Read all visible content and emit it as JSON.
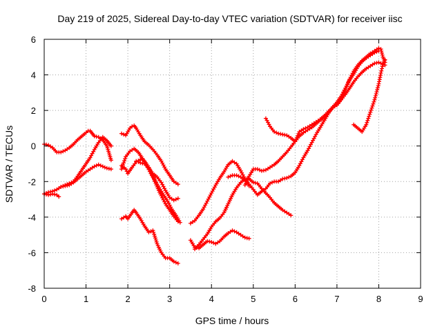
{
  "chart_data": {
    "type": "scatter",
    "title": "Day 219 of 2025, Sidereal Day-to-day VTEC variation (SDTVAR) for receiver iisc",
    "xlabel": "GPS time / hours",
    "ylabel": "SDTVAR / TECUs",
    "xlim": [
      0,
      9
    ],
    "ylim": [
      -8,
      6
    ],
    "xticks": [
      "0",
      "1",
      "2",
      "3",
      "4",
      "5",
      "6",
      "7",
      "8",
      "9"
    ],
    "yticks": [
      "-8",
      "-6",
      "-4",
      "-2",
      "0",
      "2",
      "4",
      "6"
    ],
    "grid": true,
    "marker": "plus",
    "color": "#ff0000",
    "series": [
      {
        "name": "s1",
        "x": [
          0.0,
          0.1,
          0.2,
          0.3,
          0.4,
          0.5,
          0.6,
          0.7,
          0.8,
          0.9,
          1.0,
          1.05,
          1.1,
          1.15,
          1.2,
          1.3,
          1.4,
          1.5,
          1.55,
          1.6
        ],
        "y": [
          0.1,
          0.05,
          -0.1,
          -0.35,
          -0.35,
          -0.25,
          -0.1,
          0.1,
          0.35,
          0.55,
          0.75,
          0.85,
          0.85,
          0.7,
          0.55,
          0.5,
          0.35,
          0.0,
          -0.4,
          -0.8
        ]
      },
      {
        "name": "s2",
        "x": [
          0.0,
          0.1,
          0.2,
          0.3,
          0.4,
          0.5,
          0.6,
          0.7,
          0.8,
          0.9,
          1.0,
          1.1,
          1.2,
          1.3,
          1.4,
          1.5,
          1.6
        ],
        "y": [
          -2.7,
          -2.6,
          -2.55,
          -2.45,
          -2.3,
          -2.25,
          -2.2,
          -2.05,
          -1.85,
          -1.65,
          -1.45,
          -1.3,
          -1.15,
          -1.05,
          -1.15,
          -1.25,
          -1.3
        ]
      },
      {
        "name": "s3",
        "x": [
          0.0,
          0.1,
          0.2,
          0.3,
          0.35
        ],
        "y": [
          -2.7,
          -2.75,
          -2.7,
          -2.75,
          -2.85
        ]
      },
      {
        "name": "s4",
        "x": [
          0.4,
          0.5,
          0.6,
          0.7,
          0.8,
          0.9,
          1.0,
          1.1,
          1.2,
          1.3,
          1.4,
          1.5,
          1.55,
          1.6
        ],
        "y": [
          -2.3,
          -2.2,
          -2.1,
          -2.0,
          -1.7,
          -1.35,
          -1.0,
          -0.65,
          -0.2,
          0.2,
          0.5,
          0.3,
          0.15,
          0.0
        ]
      },
      {
        "name": "s5",
        "x": [
          1.85,
          1.95,
          2.05,
          2.1,
          2.15,
          2.2,
          2.3,
          2.4,
          2.5,
          2.6,
          2.7,
          2.8,
          2.9,
          3.0,
          3.1,
          3.2
        ],
        "y": [
          0.7,
          0.6,
          1.0,
          1.1,
          1.15,
          1.0,
          0.6,
          0.25,
          0.05,
          -0.2,
          -0.5,
          -0.85,
          -1.3,
          -1.65,
          -2.0,
          -2.15
        ]
      },
      {
        "name": "s6",
        "x": [
          1.85,
          1.95,
          2.05,
          2.15,
          2.25,
          2.35,
          2.45,
          2.55,
          2.65,
          2.75,
          2.85,
          2.95,
          3.05,
          3.15,
          3.25
        ],
        "y": [
          -1.3,
          -0.6,
          -0.3,
          -0.15,
          -0.35,
          -0.7,
          -1.1,
          -1.55,
          -1.95,
          -2.35,
          -2.75,
          -3.1,
          -3.55,
          -3.9,
          -4.3
        ]
      },
      {
        "name": "s7",
        "x": [
          1.85,
          1.95,
          2.0,
          2.1,
          2.2,
          2.3,
          2.4,
          2.5,
          2.6,
          2.7,
          2.8,
          2.9,
          3.0,
          3.1,
          3.2
        ],
        "y": [
          -1.1,
          -1.3,
          -1.55,
          -1.2,
          -0.9,
          -0.75,
          -0.85,
          -1.2,
          -1.7,
          -2.3,
          -2.8,
          -3.25,
          -3.6,
          -3.95,
          -4.25
        ]
      },
      {
        "name": "s8",
        "x": [
          2.2,
          2.3,
          2.4,
          2.5,
          2.6,
          2.7,
          2.8,
          2.9,
          3.0,
          3.1,
          3.2
        ],
        "y": [
          -0.85,
          -0.95,
          -1.0,
          -1.25,
          -1.55,
          -1.75,
          -2.05,
          -2.5,
          -2.9,
          -3.05,
          -2.95
        ]
      },
      {
        "name": "s9",
        "x": [
          1.85,
          1.95,
          2.0,
          2.1,
          2.15,
          2.2,
          2.3,
          2.4,
          2.5,
          2.6,
          2.7,
          2.8,
          2.9,
          3.0,
          3.1,
          3.2
        ],
        "y": [
          -4.1,
          -3.95,
          -4.1,
          -3.75,
          -3.6,
          -3.75,
          -4.1,
          -4.5,
          -4.85,
          -4.75,
          -5.5,
          -6.0,
          -6.3,
          -6.3,
          -6.5,
          -6.6
        ]
      },
      {
        "name": "s10",
        "x": [
          3.5,
          3.6,
          3.7,
          3.8,
          3.9,
          4.0,
          4.1,
          4.2,
          4.3,
          4.4,
          4.5,
          4.6,
          4.7,
          4.8,
          4.9
        ],
        "y": [
          -4.35,
          -4.2,
          -3.9,
          -3.55,
          -3.1,
          -2.65,
          -2.2,
          -1.8,
          -1.45,
          -1.05,
          -0.85,
          -1.0,
          -1.4,
          -1.85,
          -2.25
        ]
      },
      {
        "name": "s11",
        "x": [
          3.5,
          3.6,
          3.7,
          3.8,
          3.9,
          4.0,
          4.1,
          4.2,
          4.3,
          4.4,
          4.5,
          4.6,
          4.7,
          4.8,
          4.9
        ],
        "y": [
          -5.3,
          -5.7,
          -5.75,
          -5.55,
          -5.35,
          -5.4,
          -5.5,
          -5.35,
          -5.1,
          -4.9,
          -4.75,
          -4.85,
          -5.0,
          -5.15,
          -5.2
        ]
      },
      {
        "name": "s12",
        "x": [
          3.6,
          3.7,
          3.8,
          3.9,
          4.0,
          4.1,
          4.2,
          4.3,
          4.4,
          4.5,
          4.6,
          4.7,
          4.8,
          4.9,
          5.0,
          5.1,
          5.2,
          5.3,
          5.4,
          5.5,
          5.6,
          5.7,
          5.8,
          5.9
        ],
        "y": [
          -5.8,
          -5.55,
          -5.25,
          -4.95,
          -4.55,
          -4.25,
          -4.05,
          -3.75,
          -3.25,
          -2.75,
          -2.35,
          -2.05,
          -1.85,
          -1.85,
          -2.05,
          -2.1,
          -2.4,
          -2.65,
          -2.9,
          -3.2,
          -3.4,
          -3.6,
          -3.75,
          -3.9
        ]
      },
      {
        "name": "s13",
        "x": [
          4.4,
          4.5,
          4.6,
          4.7,
          4.8,
          4.9,
          5.0,
          5.1,
          5.2,
          5.3,
          5.4,
          5.5,
          5.6,
          5.7,
          5.8,
          5.9,
          6.0,
          6.1,
          6.2,
          6.3,
          6.4,
          6.5,
          6.6,
          6.7,
          6.8,
          6.9,
          7.0,
          7.1
        ],
        "y": [
          -1.75,
          -1.65,
          -1.65,
          -1.75,
          -1.9,
          -2.15,
          -2.45,
          -2.75,
          -2.55,
          -2.4,
          -2.1,
          -2.0,
          -2.0,
          -1.85,
          -1.8,
          -1.7,
          -1.5,
          -1.1,
          -0.65,
          -0.25,
          0.2,
          0.65,
          1.05,
          1.45,
          1.85,
          2.2,
          2.45,
          2.65
        ]
      },
      {
        "name": "s14",
        "x": [
          4.8,
          4.9,
          5.0,
          5.1,
          5.2,
          5.3,
          5.4,
          5.5,
          5.6,
          5.7,
          5.8,
          5.9,
          6.0,
          6.1,
          6.2,
          6.3,
          6.4,
          6.5,
          6.6,
          6.7,
          6.8,
          6.9,
          7.0,
          7.1,
          7.2,
          7.3,
          7.4,
          7.5,
          7.6,
          7.7,
          7.8,
          7.9,
          8.0
        ],
        "y": [
          -2.2,
          -1.7,
          -1.3,
          -1.3,
          -1.4,
          -1.35,
          -1.2,
          -1.05,
          -0.85,
          -0.6,
          -0.35,
          -0.05,
          0.25,
          0.55,
          0.75,
          0.9,
          1.05,
          1.25,
          1.45,
          1.65,
          1.9,
          2.15,
          2.45,
          2.8,
          3.25,
          3.7,
          4.05,
          4.45,
          4.75,
          4.95,
          5.1,
          5.25,
          5.35
        ]
      },
      {
        "name": "s15",
        "x": [
          5.3,
          5.4,
          5.5,
          5.6,
          5.7,
          5.8,
          5.9,
          6.0,
          6.1,
          6.2,
          6.3,
          6.4,
          6.5,
          6.6,
          6.7,
          6.8,
          6.9,
          7.0,
          7.1,
          7.2,
          7.3,
          7.4,
          7.5,
          7.6,
          7.7,
          7.8,
          7.9,
          8.0,
          8.1,
          8.15
        ],
        "y": [
          1.55,
          1.1,
          0.8,
          0.7,
          0.65,
          0.6,
          0.45,
          0.25,
          0.8,
          0.95,
          1.05,
          1.2,
          1.35,
          1.5,
          1.7,
          1.95,
          2.15,
          2.3,
          2.6,
          2.9,
          3.25,
          3.6,
          3.9,
          4.15,
          4.35,
          4.5,
          4.65,
          4.7,
          4.6,
          4.55
        ]
      },
      {
        "name": "s16",
        "x": [
          7.0,
          7.1,
          7.2,
          7.3,
          7.4,
          7.5,
          7.6,
          7.7,
          7.8,
          7.9,
          8.0,
          8.05,
          8.1,
          8.15
        ],
        "y": [
          2.3,
          2.65,
          3.15,
          3.75,
          4.2,
          4.55,
          4.8,
          5.0,
          5.2,
          5.35,
          5.5,
          5.45,
          5.0,
          4.7
        ]
      },
      {
        "name": "s17",
        "x": [
          7.4,
          7.5,
          7.6,
          7.7,
          7.8,
          7.9,
          8.0,
          8.05,
          8.1,
          8.15
        ],
        "y": [
          1.2,
          1.0,
          0.8,
          1.2,
          1.9,
          2.6,
          3.5,
          4.1,
          4.6,
          4.85
        ]
      }
    ]
  }
}
